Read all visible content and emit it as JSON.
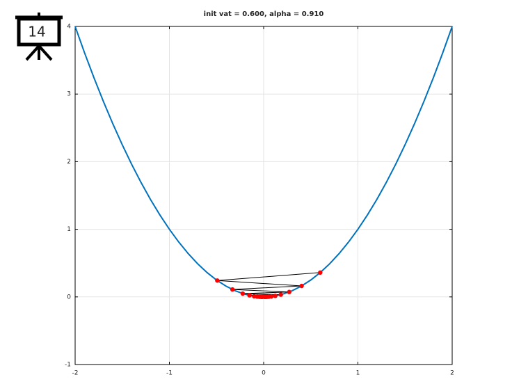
{
  "badge": "14",
  "chart_data": {
    "type": "line",
    "title": "init vat = 0.600, alpha = 0.910",
    "xlim": [
      -2,
      2
    ],
    "xticks": [
      -2,
      -1,
      0,
      1,
      2
    ],
    "ylim": [
      -1,
      4
    ],
    "yticks": [
      -1,
      0,
      1,
      2,
      3,
      4
    ],
    "grid": true,
    "series": [
      {
        "color": "#0072bd",
        "x": [
          -2,
          -1.9,
          -1.8,
          -1.7,
          -1.6,
          -1.5,
          -1.4,
          -1.3,
          -1.2,
          -1.1,
          -1,
          -0.9,
          -0.8,
          -0.7,
          -0.6,
          -0.5,
          -0.4,
          -0.3,
          -0.2,
          -0.1,
          0,
          0.1,
          0.2,
          0.3,
          0.4,
          0.5,
          0.6,
          0.7,
          0.8,
          0.9,
          1,
          1.1,
          1.2,
          1.3,
          1.4,
          1.5,
          1.6,
          1.7,
          1.8,
          1.9,
          2
        ],
        "values": [
          4,
          3.61,
          3.24,
          2.89,
          2.56,
          2.25,
          1.96,
          1.69,
          1.44,
          1.21,
          1,
          0.81,
          0.64,
          0.49,
          0.36,
          0.25,
          0.16,
          0.09,
          0.04,
          0.01,
          0,
          0.01,
          0.04,
          0.09,
          0.16,
          0.25,
          0.36,
          0.49,
          0.64,
          0.81,
          1,
          1.21,
          1.44,
          1.69,
          1.96,
          2.25,
          2.56,
          2.89,
          3.24,
          3.61,
          4
        ]
      },
      {
        "color": "#000000",
        "marker_color": "#ff0000",
        "x": [
          0.6,
          -0.492,
          0.403,
          -0.331,
          0.271,
          -0.222,
          0.182,
          -0.15,
          0.123,
          -0.101,
          0.082,
          -0.068,
          0.055,
          -0.045,
          0.037,
          -0.031,
          0.025,
          -0.021,
          0.017,
          -0.014,
          0.011
        ],
        "values": [
          0.36,
          0.242,
          0.162,
          0.11,
          0.073,
          0.049,
          0.033,
          0.023,
          0.015,
          0.01,
          0.007,
          0.005,
          0.003,
          0.002,
          0.001,
          0.001,
          0.001,
          0,
          0,
          0,
          0
        ]
      }
    ]
  }
}
